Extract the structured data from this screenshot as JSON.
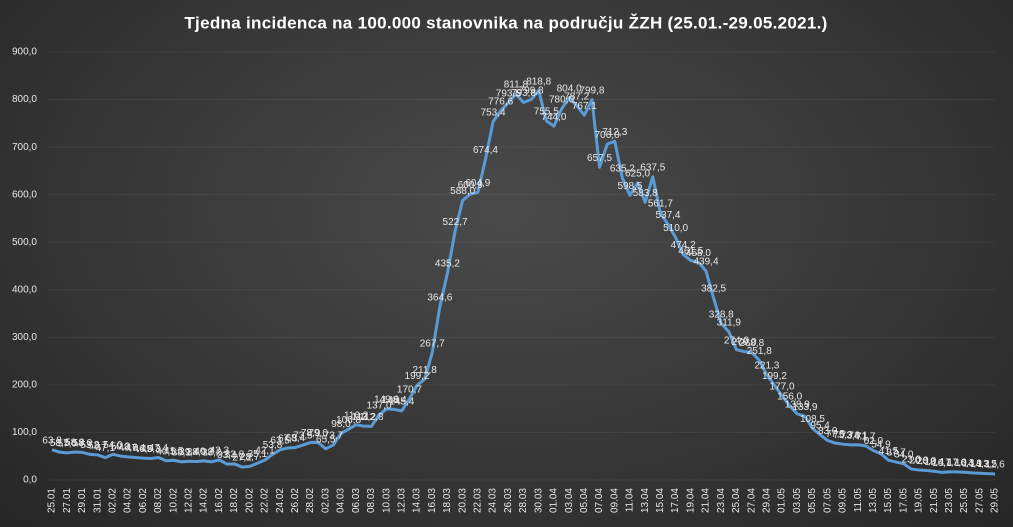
{
  "chart_data": {
    "type": "line",
    "title": "Tjedna  incidenca  na  100.000  stanovnika  na  području  ŽZH  (25.01.-29.05.2021.)",
    "categories": [
      "25.01",
      null,
      "27.01",
      null,
      "29.01",
      null,
      "31.01",
      null,
      "02.02",
      null,
      "04.02",
      null,
      "06.02",
      null,
      "08.02",
      null,
      "10.02",
      null,
      "12.02",
      null,
      "14.02",
      null,
      "16.02",
      null,
      "18.02",
      null,
      "20.02",
      null,
      "22.02",
      null,
      "24.02",
      null,
      "26.02",
      null,
      "28.02",
      null,
      "02.03",
      null,
      "04.03",
      null,
      "06.03",
      null,
      "08.03",
      null,
      "10.03",
      null,
      "12.03",
      null,
      "14.03",
      null,
      "16.03",
      null,
      "18.03",
      null,
      "20.03",
      null,
      "22.03",
      null,
      "24.03",
      null,
      "26.03",
      null,
      "28.03",
      null,
      "30.03",
      null,
      "01.04",
      null,
      "03.04",
      null,
      "05.04",
      null,
      "07.04",
      null,
      "09.04",
      null,
      "11.04",
      null,
      "13.04",
      null,
      "15.04",
      null,
      "17.04",
      null,
      "19.04",
      null,
      "21.04",
      null,
      "23.04",
      null,
      "25.04",
      null,
      "27.04",
      null,
      "29.04",
      null,
      "01.05",
      null,
      "03.05",
      null,
      "05.05",
      null,
      "07.05",
      null,
      "09.05",
      null,
      "11.05",
      null,
      "13.05",
      null,
      "15.05",
      null,
      "17.05",
      null,
      "19.05",
      null,
      "21.05",
      null,
      "23.05",
      null,
      "25.05",
      null,
      "27.05",
      null,
      "29.05"
    ],
    "series": [
      {
        "color": "#5b9bd5",
        "values": [
          63.8,
          58.5,
          57.0,
          58.8,
          58.0,
          53.8,
          52.7,
          47.1,
          54.0,
          50.3,
          48.6,
          47.4,
          46.0,
          45.3,
          47.4,
          40.5,
          41.5,
          38.1,
          39.4,
          38.9,
          40.2,
          38.2,
          42.3,
          33.4,
          33.8,
          27.2,
          28.7,
          35.1,
          42.1,
          53.8,
          63.5,
          67.3,
          68.4,
          73.5,
          78.9,
          79.0,
          65.5,
          73.7,
          98.0,
          106.8,
          116.2,
          113.2,
          112.8,
          137.0,
          149.6,
          148.4,
          145.4,
          170.7,
          199.2,
          211.8,
          267.7,
          364.6,
          435.2,
          522.7,
          588.0,
          600.9,
          604.9,
          674.4,
          753.4,
          776.6,
          793.5,
          811.8,
          793.8,
          799.8,
          818.8,
          755.5,
          744.0,
          780.0,
          804.0,
          787.2,
          767.1,
          799.8,
          657.5,
          706.0,
          712.3,
          635.2,
          598.5,
          625.0,
          583.8,
          637.5,
          561.7,
          537.4,
          510.0,
          474.2,
          461.5,
          458.0,
          439.4,
          382.5,
          328.8,
          311.9,
          274.0,
          270.0,
          268.8,
          251.8,
          221.3,
          199.2,
          177.0,
          156.0,
          138.9,
          133.9,
          108.5,
          95.4,
          83.0,
          77.5,
          75.3,
          73.8,
          74.1,
          71.7,
          62.0,
          54.9,
          41.5,
          37.7,
          34.0,
          23.0,
          20.9,
          20.0,
          18.4,
          16.1,
          17.2,
          17.0,
          16.3,
          14.9,
          14.2,
          13.5,
          12.6
        ],
        "value_labels": [
          "63,8",
          "58,5",
          "57,0",
          "58,8",
          "58,0",
          "53,8",
          "52,7",
          "47,1",
          "54,0",
          "50,3",
          "48,6",
          "47,4",
          "46,0",
          "45,3",
          "47,4",
          "40,5",
          "41,5",
          "38,1",
          "39,4",
          "38,9",
          "40,2",
          "38,2",
          "42,3",
          "33,4",
          "33,8",
          "27,2",
          "28,7",
          "35,1",
          "42,1",
          "53,8",
          "63,5",
          "67,3",
          "68,4",
          "73,5",
          "78,9",
          "79,0",
          "65,5",
          "73,7",
          "98,0",
          "106,8",
          "116,2",
          "113,2",
          "112,8",
          "137,0",
          "149,6",
          "148,4",
          "145,4",
          "170,7",
          "199,2",
          "211,8",
          "267,7",
          "364,6",
          "435,2",
          "522,7",
          "588,0",
          "600,9",
          "604,9",
          "674,4",
          "753,4",
          "776,6",
          "793,5",
          "811,8",
          "793,8",
          "799,8",
          "818,8",
          "755,5",
          "744,0",
          "780,0",
          "804,0",
          "787,2",
          "767,1",
          "799,8",
          "657,5",
          "706,0",
          "712,3",
          "635,2",
          "598,5",
          "625,0",
          "583,8",
          "637,5",
          "561,7",
          "537,4",
          "510,0",
          "474,2",
          "461,5",
          "458,0",
          "439,4",
          "382,5",
          "328,8",
          "311,9",
          "274,0",
          "270,0",
          "268,8",
          "251,8",
          "221,3",
          "199,2",
          "177,0",
          "156,0",
          "138,9",
          "133,9",
          "108,5",
          "95,4",
          "83,0",
          "77,5",
          "75,3",
          "73,8",
          "74,1",
          "71,7",
          "62,0",
          "54,9",
          "41,5",
          "37,7",
          "34,0",
          "23,0",
          "20,9",
          "20,0",
          "18,4",
          "16,1",
          "17,2",
          "17,0",
          "16,3",
          "14,9",
          "14,2",
          "13,5",
          "12,6"
        ]
      }
    ],
    "ylim": [
      0,
      900
    ],
    "yticks": [
      {
        "value": 0,
        "label": "0,0"
      },
      {
        "value": 100,
        "label": "100,0"
      },
      {
        "value": 200,
        "label": "200,0"
      },
      {
        "value": 300,
        "label": "300,0"
      },
      {
        "value": 400,
        "label": "400,0"
      },
      {
        "value": 500,
        "label": "500,0"
      },
      {
        "value": 600,
        "label": "600,0"
      },
      {
        "value": 700,
        "label": "700,0"
      },
      {
        "value": 800,
        "label": "800,0"
      },
      {
        "value": 900,
        "label": "900,0"
      }
    ],
    "grid": true
  }
}
